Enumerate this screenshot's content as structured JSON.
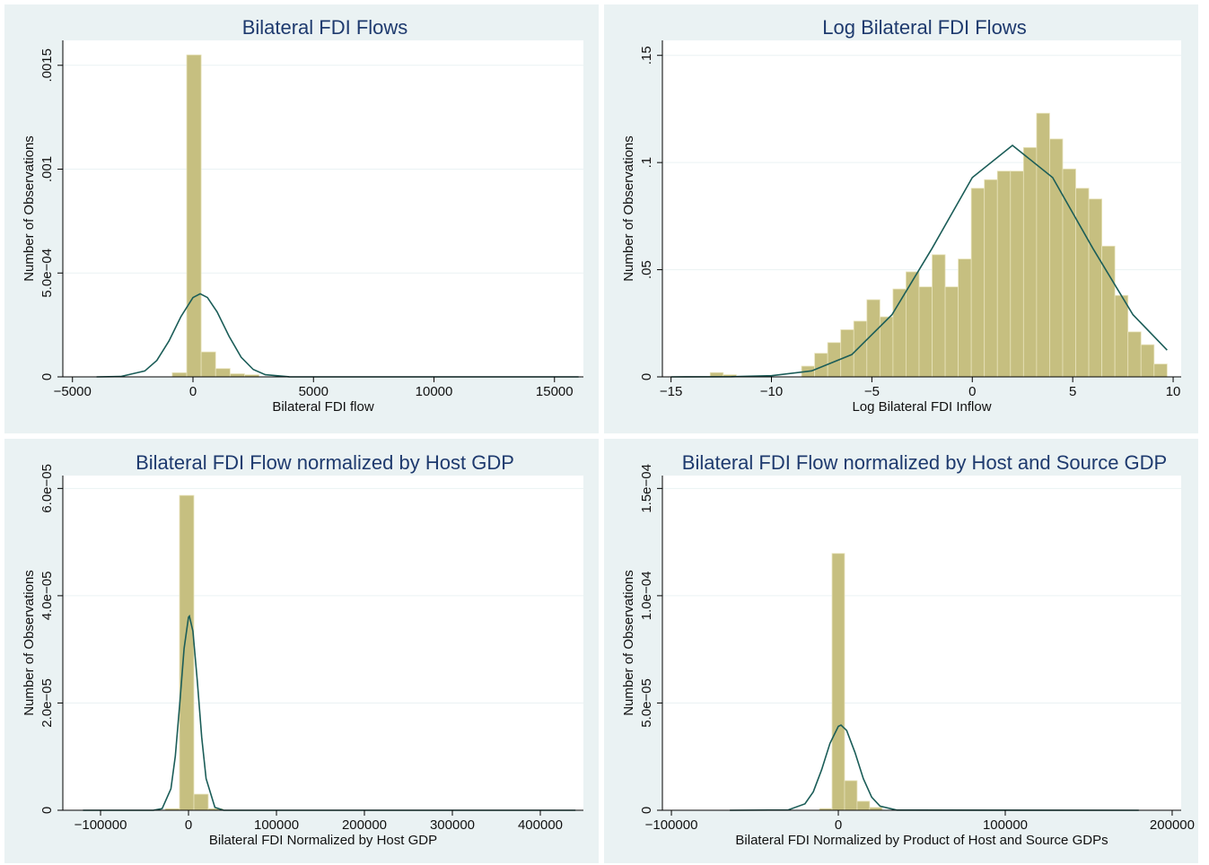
{
  "chart_data": [
    {
      "type": "histogram",
      "title": "Bilateral FDI Flows",
      "xlabel": "Bilateral FDI flow",
      "ylabel": "Number of Observations",
      "bins": [
        -860,
        -260,
        340,
        940,
        1540,
        2140,
        2740
      ],
      "values": [
        2e-05,
        0.00155,
        0.00012,
        4e-05,
        1.5e-05,
        1e-05
      ],
      "color": "#c6bf80",
      "density": {
        "color": "#1b5d58",
        "x": [
          -4000,
          -3000,
          -2000,
          -1500,
          -1000,
          -500,
          0,
          300,
          600,
          1000,
          1500,
          2000,
          2500,
          3000,
          4000,
          6000,
          10000,
          16000
        ],
        "values": [
          0,
          1.7e-06,
          2.84e-05,
          7.92e-05,
          0.000172,
          0.00029,
          0.000382,
          0.0004,
          0.000382,
          0.000313,
          0.000195,
          9.43e-05,
          3.56e-05,
          1.05e-05,
          4e-07,
          0,
          0,
          0
        ]
      },
      "xlim": [
        -5400,
        16200
      ],
      "ylim": [
        0,
        0.00162
      ],
      "xticks": [
        {
          "value": -5000,
          "label": "−5000"
        },
        0,
        5000,
        10000,
        15000
      ],
      "yticks": [
        0,
        {
          "value": 0.0005,
          "label": "5.0e−04"
        },
        {
          "value": 0.001,
          "label": ".001"
        },
        {
          "value": 0.0015,
          "label": ".0015"
        }
      ],
      "grid": true
    },
    {
      "type": "histogram",
      "title": "Log Bilateral FDI Flows",
      "xlabel": "Log Bilateral FDI Inflow",
      "ylabel": "Number of Observations",
      "bins": [
        -13.05,
        -12.4,
        -11.75,
        -11.1,
        -10.45,
        -9.8,
        -9.15,
        -8.5,
        -7.85,
        -7.2,
        -6.55,
        -5.9,
        -5.25,
        -4.6,
        -3.95,
        -3.3,
        -2.65,
        -2,
        -1.35,
        -0.7,
        -0.05,
        0.6,
        1.25,
        1.9,
        2.55,
        3.2,
        3.85,
        4.5,
        5.15,
        5.8,
        6.45,
        7.1,
        7.75,
        8.4,
        9.05,
        9.7
      ],
      "values": [
        0.002,
        0.001,
        0,
        0,
        0,
        0,
        0,
        0.005,
        0.011,
        0.016,
        0.022,
        0.026,
        0.036,
        0.028,
        0.041,
        0.049,
        0.042,
        0.057,
        0.042,
        0.055,
        0.088,
        0.092,
        0.096,
        0.096,
        0.107,
        0.123,
        0.111,
        0.097,
        0.088,
        0.083,
        0.061,
        0.038,
        0.021,
        0.015,
        0.006
      ],
      "color": "#c6bf80",
      "density": {
        "color": "#1b5d58",
        "x": [
          -15,
          -12,
          -10,
          -8,
          -6,
          -4,
          -2,
          0,
          2,
          4,
          6,
          8,
          9.7
        ],
        "values": [
          0,
          8e-05,
          0.00056,
          0.0028,
          0.0104,
          0.029,
          0.06,
          0.093,
          0.108,
          0.093,
          0.06,
          0.029,
          0.0125
        ]
      },
      "xlim": [
        -15.43,
        10.4
      ],
      "ylim": [
        0,
        0.157
      ],
      "xticks": [
        {
          "value": -15,
          "label": "−15"
        },
        {
          "value": -10,
          "label": "−10"
        },
        {
          "value": -5,
          "label": "−5"
        },
        0,
        5,
        10
      ],
      "yticks": [
        0,
        {
          "value": 0.05,
          "label": ".05"
        },
        {
          "value": 0.1,
          "label": ".1"
        },
        {
          "value": 0.15,
          "label": ".15"
        }
      ],
      "grid": true
    },
    {
      "type": "histogram",
      "title": "Bilateral FDI Flow normalized by Host GDP",
      "xlabel": "Bilateral FDI Normalized by Host GDP",
      "ylabel": "Number of Observations",
      "bins": [
        -26500,
        -10200,
        6100,
        22400,
        38700
      ],
      "values": [
        3e-07,
        5.87e-05,
        3e-06,
        3e-07
      ],
      "color": "#c6bf80",
      "density": {
        "color": "#1b5d58",
        "x": [
          -120000,
          -40000,
          -30000,
          -20000,
          -15000,
          -10000,
          -5000,
          0,
          1000,
          5000,
          10000,
          15000,
          20000,
          30000,
          40000,
          440000
        ],
        "values": [
          0,
          0,
          3e-07,
          4e-06,
          1.01e-05,
          1.98e-05,
          3.02e-05,
          3.6e-05,
          3.62e-05,
          3.34e-05,
          2.41e-05,
          1.36e-05,
          5.9e-06,
          5.4e-07,
          0,
          0
        ]
      },
      "xlim": [
        -142900,
        449000
      ],
      "ylim": [
        0,
        6.24e-05
      ],
      "xticks": [
        {
          "value": -100000,
          "label": "−100000"
        },
        0,
        100000,
        200000,
        300000,
        400000
      ],
      "yticks": [
        0,
        {
          "value": 2e-05,
          "label": "2.0e−05"
        },
        {
          "value": 4e-05,
          "label": "4.0e−05"
        },
        {
          "value": 6e-05,
          "label": "6.0e−05"
        }
      ],
      "grid": true
    },
    {
      "type": "histogram",
      "title": "Bilateral FDI Flow normalized by Host and Source GDP",
      "xlabel": "Bilateral FDI Normalized by Product of Host and Source GDPs",
      "ylabel": "Number of Observations",
      "bins": [
        -11260,
        -3760,
        3740,
        11240,
        18740,
        26240
      ],
      "values": [
        8e-07,
        0.0001197,
        1.38e-05,
        4.2e-06,
        1.3e-06
      ],
      "color": "#c6bf80",
      "density": {
        "color": "#1b5d58",
        "x": [
          -65000,
          -30000,
          -20000,
          -15000,
          -10000,
          -5000,
          0,
          1600,
          5000,
          10000,
          15000,
          20000,
          25000,
          35000,
          180000
        ],
        "values": [
          0,
          1.6e-07,
          3e-06,
          8.6e-06,
          1.89e-05,
          3.12e-05,
          3.91e-05,
          3.97e-05,
          3.72e-05,
          2.69e-05,
          1.47e-05,
          6.1e-06,
          1.9e-06,
          9e-08,
          0
        ]
      },
      "xlim": [
        -105400,
        205400
      ],
      "ylim": [
        0,
        0.000156
      ],
      "xticks": [
        {
          "value": -100000,
          "label": "−100000"
        },
        0,
        100000,
        200000
      ],
      "yticks": [
        0,
        {
          "value": 5e-05,
          "label": "5.0e−05"
        },
        {
          "value": 0.0001,
          "label": "1.0e−04"
        },
        {
          "value": 0.00015,
          "label": "1.5e−04"
        }
      ],
      "grid": true
    }
  ]
}
